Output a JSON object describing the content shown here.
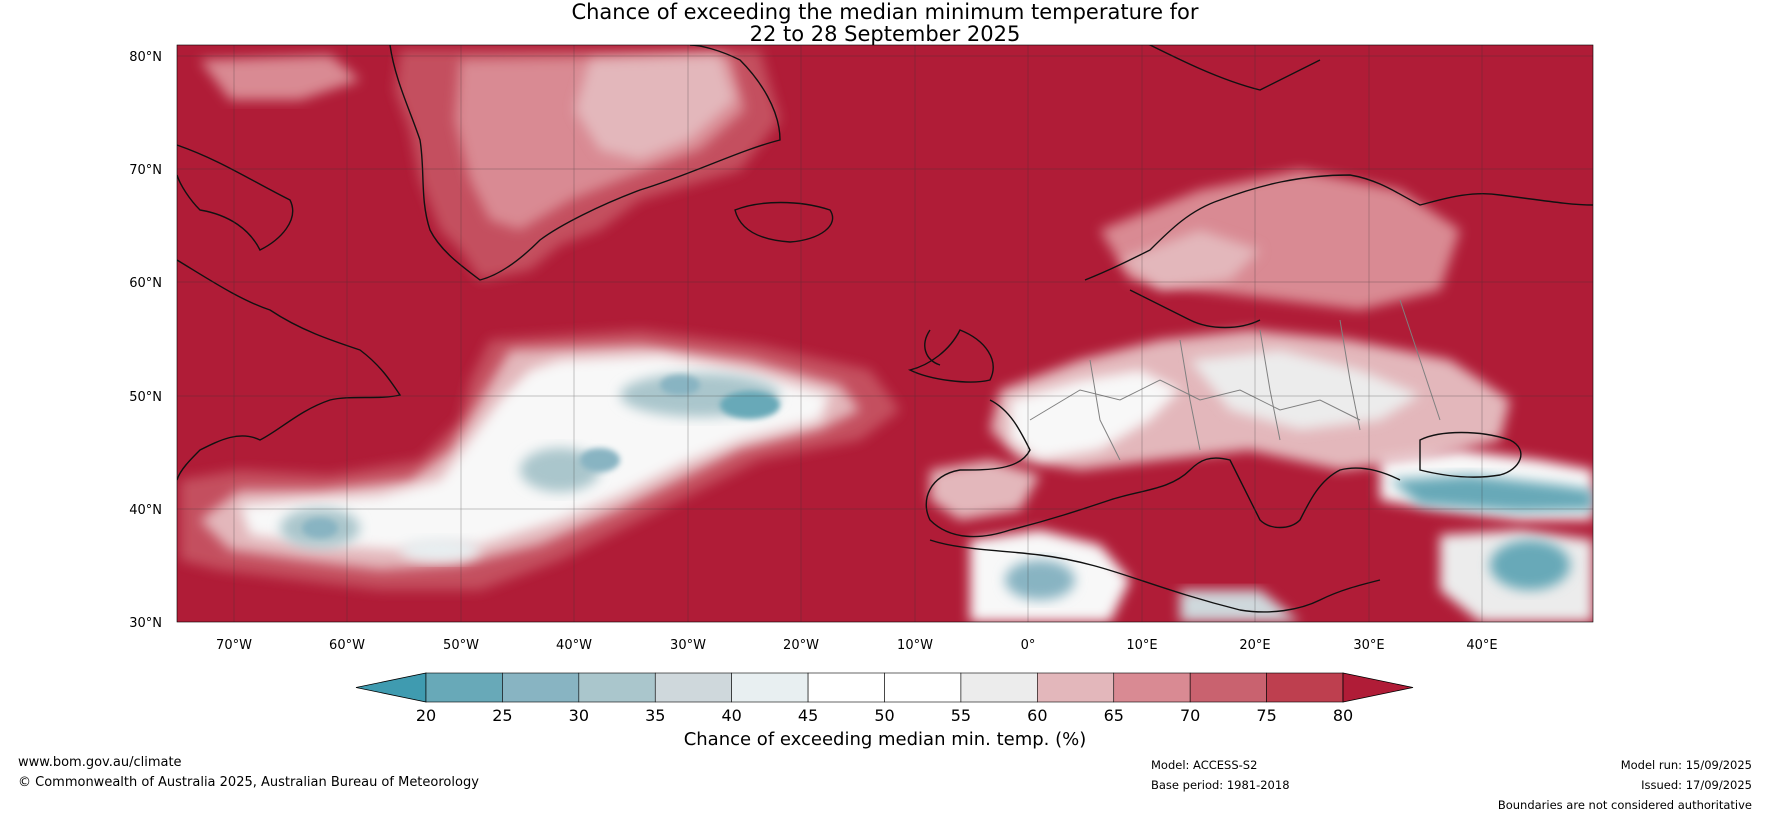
{
  "title": {
    "line1": "Chance of exceeding the median minimum temperature for",
    "line2": "22 to 28 September 2025"
  },
  "map": {
    "lat_ticks": [
      "80°N",
      "70°N",
      "60°N",
      "50°N",
      "40°N",
      "30°N"
    ],
    "lon_ticks": [
      "70°W",
      "60°W",
      "50°W",
      "40°W",
      "30°W",
      "20°W",
      "10°W",
      "0°",
      "10°E",
      "20°E",
      "30°E",
      "40°E"
    ],
    "colors": {
      "ocean_high": "#b01c37",
      "mid_pink": "#c4505f",
      "light_pink": "#d98a93",
      "pale": "#e9c4c7",
      "white": "#f8f8f8",
      "light_blue": "#cfdbdf",
      "teal": "#68a9b8",
      "dark_teal": "#3f9bb0",
      "coast": "#111111",
      "border": "#808080"
    }
  },
  "colorbar": {
    "ticks": [
      "20",
      "25",
      "30",
      "35",
      "40",
      "45",
      "50",
      "55",
      "60",
      "65",
      "70",
      "75",
      "80"
    ],
    "colors": [
      "#3f9bb0",
      "#68a9b8",
      "#88b4c2",
      "#aac6cc",
      "#cfd8dc",
      "#e8eff1",
      "#ffffff",
      "#ffffff",
      "#ececec",
      "#e3b7bb",
      "#d98a93",
      "#c9626f",
      "#be3f4f",
      "#b01c37"
    ],
    "label": "Chance of exceeding median min. temp. (%)"
  },
  "footer": {
    "url": "www.bom.gov.au/climate",
    "copyright": "© Commonwealth of Australia 2025, Australian Bureau of Meteorology",
    "model": "Model: ACCESS-S2",
    "base_period": "Base period: 1981-2018",
    "model_run": "Model run: 15/09/2025",
    "issued": "Issued: 17/09/2025",
    "disclaimer": "Boundaries are not considered authoritative"
  }
}
